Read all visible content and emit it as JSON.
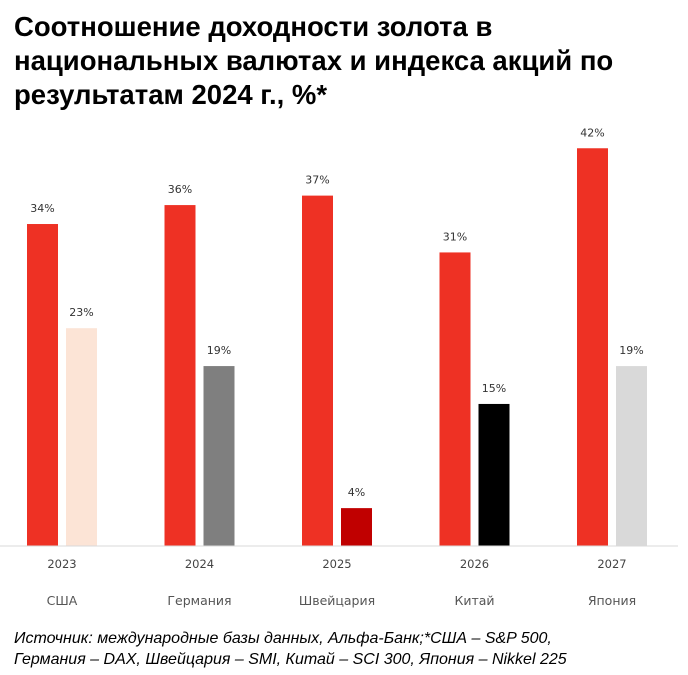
{
  "chart_data": {
    "type": "bar",
    "title": "Соотношение доходности золота в национальных валютах и индекса акций по результатам 2024 г., %*",
    "categories": [
      "2023",
      "2024",
      "2025",
      "2026",
      "2027"
    ],
    "countries": [
      "США",
      "Германия",
      "Швейцария",
      "Китай",
      "Япония"
    ],
    "gold_values": [
      34,
      36,
      37,
      31,
      42
    ],
    "gold_color": "#ee3124",
    "stock_values": [
      23,
      19,
      4,
      15,
      19
    ],
    "stock_colors": [
      "#fce4d6",
      "#7f7f7f",
      "#c00000",
      "#000000",
      "#d9d9d9"
    ],
    "value_suffix": "%",
    "ylim": [
      0,
      43
    ]
  },
  "footnote": {
    "line1": "Источник: международные базы данных, Альфа-Банк;*США – S&P 500,",
    "line2": "Германия – DAX, Швейцария – SMI, Китай – SCI 300, Япония – Nikkel 225"
  }
}
